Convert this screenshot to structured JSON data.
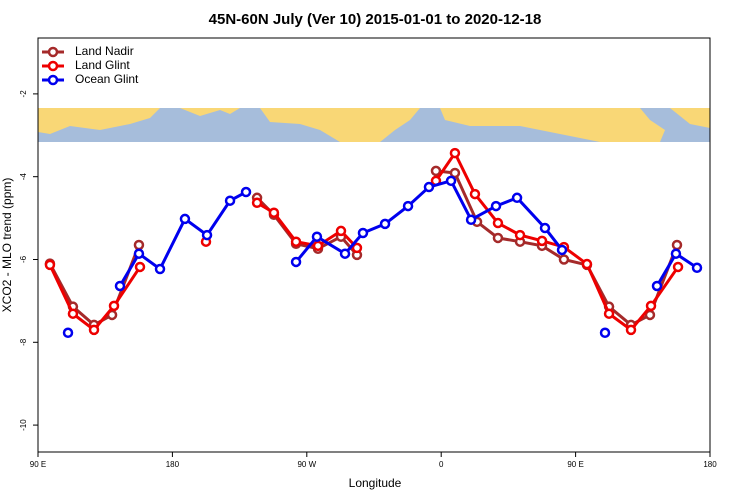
{
  "chart_data": {
    "type": "line",
    "title": "45N-60N July (Ver 10)   2015-01-01 to 2020-12-18",
    "x_label": "Longitude",
    "y_label": "XCO2 - MLO trend (ppm)",
    "xlim": [
      90,
      540
    ],
    "ylim": [
      -10.65,
      -0.65
    ],
    "xticks": [
      {
        "value": 90,
        "label": "90 E"
      },
      180,
      {
        "value": 270,
        "label": "90 W"
      },
      {
        "value": 360,
        "label": "0"
      },
      {
        "value": 450,
        "label": "90 E"
      },
      {
        "value": 540,
        "label": "180"
      }
    ],
    "yticks": [
      -2,
      -4,
      -6,
      -8,
      -10
    ],
    "legend": "top-left",
    "series": [
      {
        "name": "Land Nadir",
        "color": "#a52a2a",
        "x": [
          98,
          113.4,
          127.5,
          139.6,
          157.6,
          null,
          236.7,
          248,
          262.8,
          277.5,
          292.9,
          303.6,
          null,
          356.5,
          369.2,
          384,
          398,
          412.8,
          427.5,
          442.2,
          457.6,
          472.4,
          487.1,
          499.8,
          517.9
        ],
        "values": [
          -6.1,
          -7.14,
          -7.58,
          -7.34,
          -5.65,
          null,
          -4.51,
          -4.92,
          -5.62,
          -5.74,
          -5.45,
          -5.89,
          null,
          -3.86,
          -3.91,
          -5.09,
          -5.48,
          -5.57,
          -5.67,
          -6.0,
          -6.13,
          -7.14,
          -7.58,
          -7.34,
          -5.65
        ]
      },
      {
        "name": "Land Glint",
        "color": "#ee0000",
        "x": [
          98,
          113.4,
          127.5,
          140.9,
          158.3,
          null,
          202.5,
          null,
          236.7,
          248,
          262.8,
          277.5,
          292.9,
          303.6,
          null,
          356.5,
          369.2,
          382.6,
          398,
          412.8,
          427.5,
          442.2,
          457.6,
          472.4,
          487.1,
          500.5,
          518.6
        ],
        "values": [
          -6.13,
          -7.31,
          -7.7,
          -7.12,
          -6.18,
          null,
          -5.57,
          null,
          -4.63,
          -4.87,
          -5.57,
          -5.67,
          -5.31,
          -5.72,
          null,
          -4.1,
          -3.43,
          -4.42,
          -5.12,
          -5.41,
          -5.55,
          -5.7,
          -6.11,
          -7.31,
          -7.7,
          -7.12,
          -6.18
        ]
      },
      {
        "name": "Ocean Glint",
        "color": "#0000ee",
        "x": [
          110.1,
          null,
          144.9,
          157.6,
          171.7,
          188.4,
          203.2,
          218.6,
          229.3,
          null,
          262.8,
          276.8,
          295.6,
          307.6,
          322.4,
          337.8,
          351.8,
          366.6,
          380,
          396.7,
          410.8,
          429.5,
          440.9,
          null,
          469.7,
          null,
          504.5,
          517.2,
          531.3
        ],
        "values": [
          -7.77,
          null,
          -6.64,
          -5.86,
          -6.23,
          -5.02,
          -5.41,
          -4.58,
          -4.37,
          null,
          -6.06,
          -5.45,
          -5.86,
          -5.36,
          -5.14,
          -4.71,
          -4.25,
          -4.1,
          -5.04,
          -4.71,
          -4.51,
          -5.24,
          -5.77,
          null,
          -7.77,
          null,
          -6.64,
          -5.86,
          -6.2
        ]
      }
    ]
  }
}
